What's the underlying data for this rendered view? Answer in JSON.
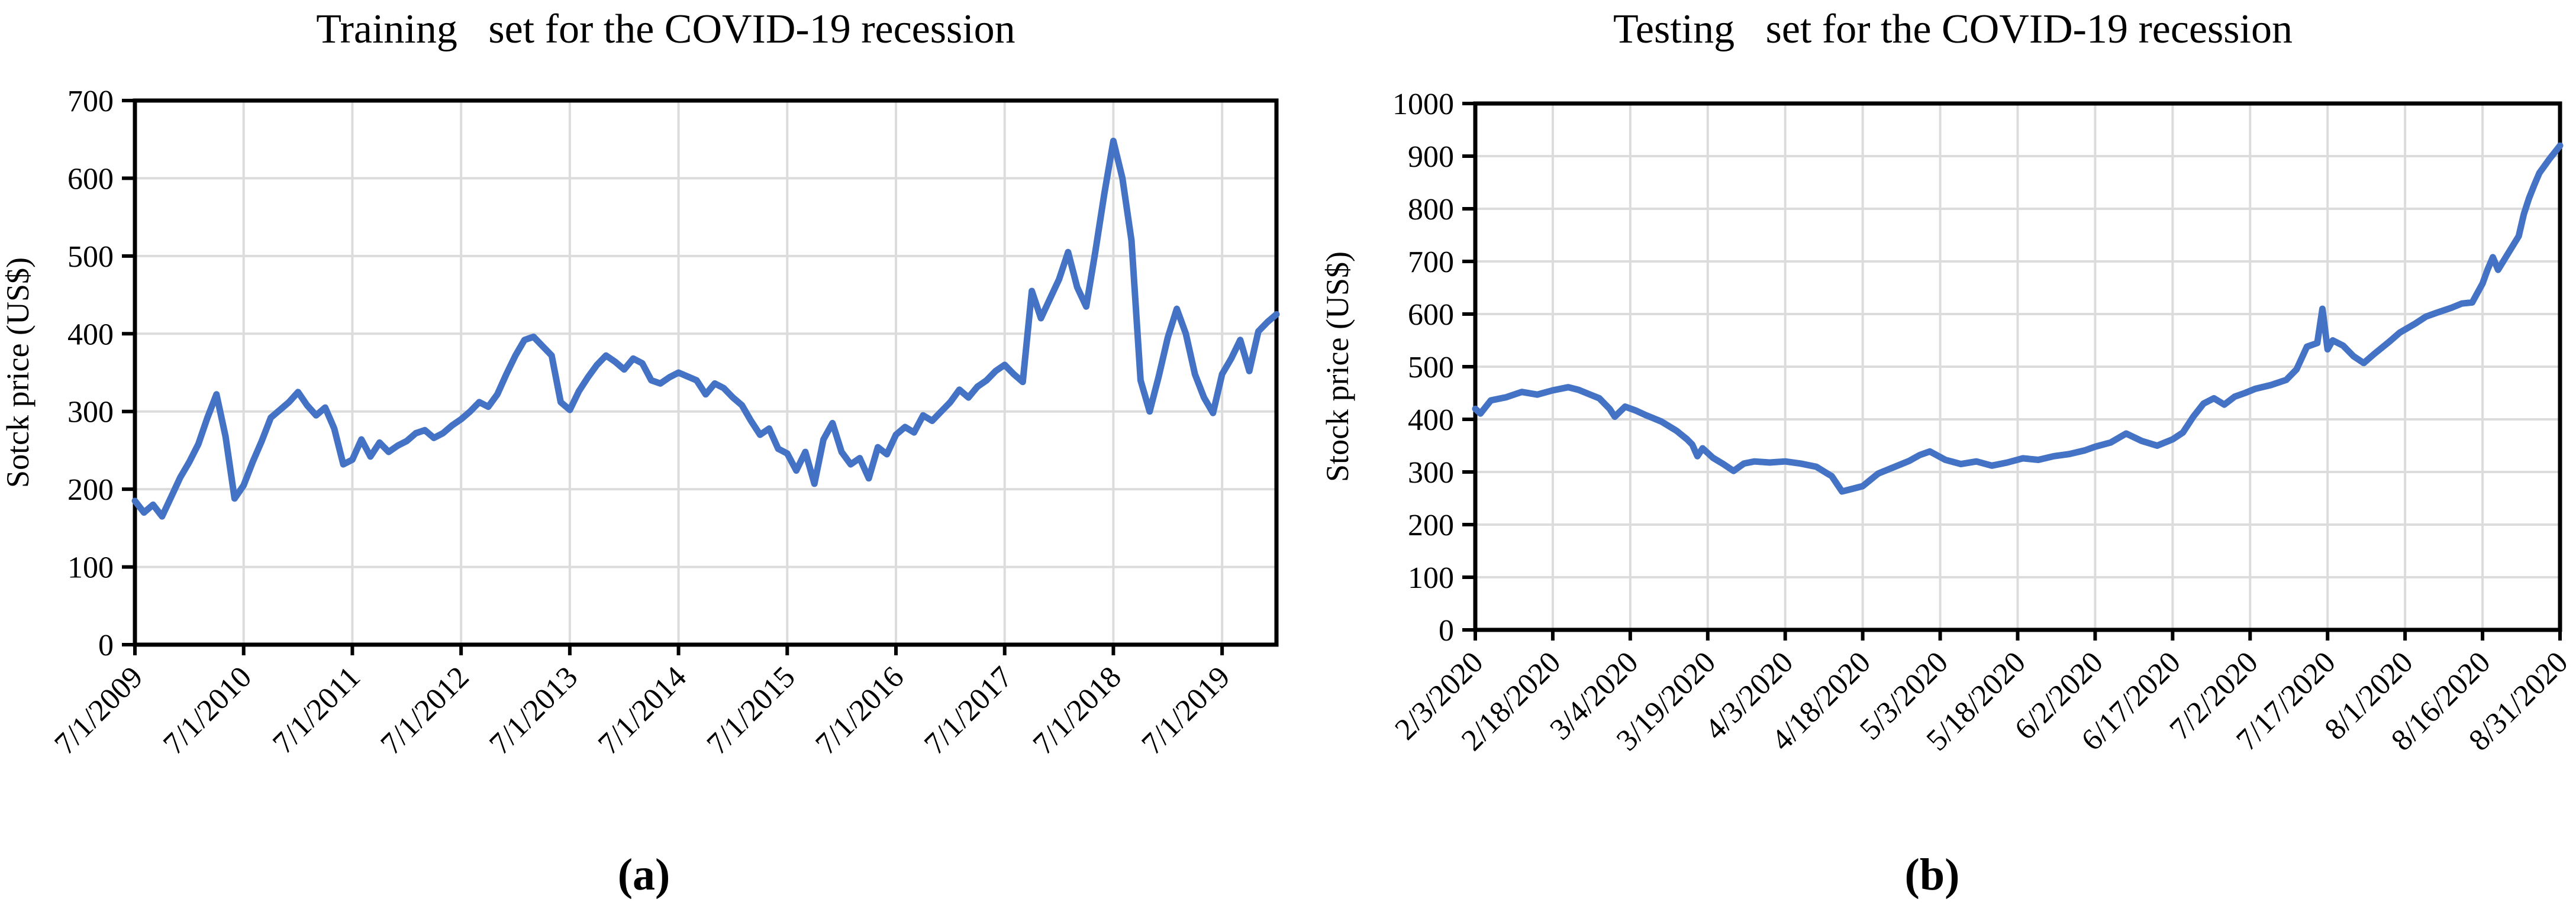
{
  "figure": {
    "caption_a": "(a)",
    "caption_b": "(b)"
  },
  "colors": {
    "line": "#4472C4",
    "grid": "#DCDCDC",
    "axis": "#000000",
    "background": "#FFFFFF"
  },
  "chart_data": [
    {
      "id": "training",
      "type": "line",
      "title": "Training  set for the COVID-19 recession",
      "xlabel": "",
      "ylabel": "Sotck price (US$)",
      "ylim": [
        0,
        700
      ],
      "ytick_step": 100,
      "y_tick_labels": [
        "0",
        "100",
        "200",
        "300",
        "400",
        "500",
        "600",
        "700"
      ],
      "xlim": [
        0,
        126
      ],
      "x_unit": "months since 7/1/2009",
      "x_tick_positions": [
        0,
        12,
        24,
        36,
        48,
        60,
        72,
        84,
        96,
        108,
        120
      ],
      "x_tick_labels": [
        "7/1/2009",
        "7/1/2010",
        "7/1/2011",
        "7/1/2012",
        "7/1/2013",
        "7/1/2014",
        "7/1/2015",
        "7/1/2016",
        "7/1/2017",
        "7/1/2018",
        "7/1/2019"
      ],
      "grid": true,
      "legend": "none",
      "series": [
        {
          "name": "stock-price",
          "color": "#4472C4",
          "points": [
            [
              0,
              185
            ],
            [
              1,
              170
            ],
            [
              2,
              180
            ],
            [
              3,
              165
            ],
            [
              4,
              190
            ],
            [
              5,
              215
            ],
            [
              6,
              235
            ],
            [
              7,
              258
            ],
            [
              8,
              292
            ],
            [
              9,
              322
            ],
            [
              10,
              268
            ],
            [
              11,
              188
            ],
            [
              12,
              205
            ],
            [
              13,
              235
            ],
            [
              14,
              262
            ],
            [
              15,
              292
            ],
            [
              16,
              302
            ],
            [
              17,
              312
            ],
            [
              18,
              325
            ],
            [
              19,
              308
            ],
            [
              20,
              295
            ],
            [
              21,
              305
            ],
            [
              22,
              278
            ],
            [
              23,
              232
            ],
            [
              24,
              238
            ],
            [
              25,
              264
            ],
            [
              26,
              242
            ],
            [
              27,
              260
            ],
            [
              28,
              248
            ],
            [
              29,
              256
            ],
            [
              30,
              262
            ],
            [
              31,
              272
            ],
            [
              32,
              276
            ],
            [
              33,
              266
            ],
            [
              34,
              272
            ],
            [
              35,
              282
            ],
            [
              36,
              290
            ],
            [
              37,
              300
            ],
            [
              38,
              312
            ],
            [
              39,
              306
            ],
            [
              40,
              322
            ],
            [
              41,
              348
            ],
            [
              42,
              372
            ],
            [
              43,
              392
            ],
            [
              44,
              396
            ],
            [
              45,
              384
            ],
            [
              46,
              372
            ],
            [
              47,
              312
            ],
            [
              48,
              302
            ],
            [
              49,
              326
            ],
            [
              50,
              344
            ],
            [
              51,
              360
            ],
            [
              52,
              372
            ],
            [
              53,
              364
            ],
            [
              54,
              354
            ],
            [
              55,
              368
            ],
            [
              56,
              362
            ],
            [
              57,
              340
            ],
            [
              58,
              336
            ],
            [
              59,
              344
            ],
            [
              60,
              350
            ],
            [
              61,
              345
            ],
            [
              62,
              340
            ],
            [
              63,
              322
            ],
            [
              64,
              336
            ],
            [
              65,
              330
            ],
            [
              66,
              318
            ],
            [
              67,
              308
            ],
            [
              68,
              288
            ],
            [
              69,
              270
            ],
            [
              70,
              278
            ],
            [
              71,
              252
            ],
            [
              72,
              246
            ],
            [
              73,
              224
            ],
            [
              74,
              248
            ],
            [
              75,
              207
            ],
            [
              76,
              264
            ],
            [
              77,
              285
            ],
            [
              78,
              248
            ],
            [
              79,
              232
            ],
            [
              80,
              240
            ],
            [
              81,
              214
            ],
            [
              82,
              254
            ],
            [
              83,
              245
            ],
            [
              84,
              270
            ],
            [
              85,
              280
            ],
            [
              86,
              273
            ],
            [
              87,
              295
            ],
            [
              88,
              288
            ],
            [
              89,
              300
            ],
            [
              90,
              312
            ],
            [
              91,
              328
            ],
            [
              92,
              318
            ],
            [
              93,
              332
            ],
            [
              94,
              340
            ],
            [
              95,
              352
            ],
            [
              96,
              360
            ],
            [
              97,
              348
            ],
            [
              98,
              338
            ],
            [
              99,
              455
            ],
            [
              100,
              420
            ],
            [
              101,
              445
            ],
            [
              102,
              470
            ],
            [
              103,
              505
            ],
            [
              104,
              460
            ],
            [
              105,
              435
            ],
            [
              106,
              505
            ],
            [
              107,
              580
            ],
            [
              108,
              648
            ],
            [
              109,
              600
            ],
            [
              110,
              520
            ],
            [
              111,
              340
            ],
            [
              112,
              300
            ],
            [
              113,
              345
            ],
            [
              114,
              395
            ],
            [
              115,
              432
            ],
            [
              116,
              400
            ],
            [
              117,
              348
            ],
            [
              118,
              318
            ],
            [
              119,
              298
            ],
            [
              120,
              348
            ],
            [
              121,
              368
            ],
            [
              122,
              392
            ],
            [
              123,
              352
            ],
            [
              124,
              403
            ],
            [
              125,
              415
            ],
            [
              126,
              425
            ]
          ]
        }
      ]
    },
    {
      "id": "testing",
      "type": "line",
      "title": "Testing  set for the COVID-19 recession",
      "xlabel": "",
      "ylabel": "Stock price (US$)",
      "ylim": [
        0,
        1000
      ],
      "ytick_step": 100,
      "y_tick_labels": [
        "0",
        "100",
        "200",
        "300",
        "400",
        "500",
        "600",
        "700",
        "800",
        "900",
        "1000"
      ],
      "xlim": [
        0,
        210
      ],
      "x_unit": "days since 2/3/2020",
      "x_tick_positions": [
        0,
        15,
        30,
        45,
        60,
        75,
        90,
        105,
        120,
        135,
        150,
        165,
        180,
        195,
        210
      ],
      "x_tick_labels": [
        "2/3/2020",
        "2/18/2020",
        "3/4/2020",
        "3/19/2020",
        "4/3/2020",
        "4/18/2020",
        "5/3/2020",
        "5/18/2020",
        "6/2/2020",
        "6/17/2020",
        "7/2/2020",
        "7/17/2020",
        "8/1/2020",
        "8/16/2020",
        "8/31/2020"
      ],
      "grid": true,
      "legend": "none",
      "series": [
        {
          "name": "stock-price",
          "color": "#4472C4",
          "points": [
            [
              0,
              420
            ],
            [
              1,
              411
            ],
            [
              3,
              436
            ],
            [
              6,
              442
            ],
            [
              9,
              452
            ],
            [
              12,
              447
            ],
            [
              15,
              455
            ],
            [
              18,
              461
            ],
            [
              20,
              456
            ],
            [
              22,
              448
            ],
            [
              24,
              440
            ],
            [
              26,
              420
            ],
            [
              27,
              405
            ],
            [
              29,
              424
            ],
            [
              31,
              417
            ],
            [
              33,
              408
            ],
            [
              36,
              396
            ],
            [
              39,
              378
            ],
            [
              41,
              362
            ],
            [
              42,
              352
            ],
            [
              43,
              330
            ],
            [
              44,
              345
            ],
            [
              46,
              327
            ],
            [
              48,
              315
            ],
            [
              50,
              302
            ],
            [
              52,
              316
            ],
            [
              54,
              320
            ],
            [
              57,
              318
            ],
            [
              60,
              320
            ],
            [
              63,
              316
            ],
            [
              66,
              310
            ],
            [
              68,
              298
            ],
            [
              69,
              292
            ],
            [
              71,
              263
            ],
            [
              73,
              268
            ],
            [
              75,
              273
            ],
            [
              78,
              297
            ],
            [
              81,
              309
            ],
            [
              84,
              321
            ],
            [
              86,
              332
            ],
            [
              88,
              339
            ],
            [
              91,
              323
            ],
            [
              94,
              315
            ],
            [
              97,
              320
            ],
            [
              100,
              312
            ],
            [
              103,
              318
            ],
            [
              106,
              326
            ],
            [
              109,
              323
            ],
            [
              112,
              330
            ],
            [
              115,
              334
            ],
            [
              118,
              341
            ],
            [
              120,
              348
            ],
            [
              123,
              356
            ],
            [
              126,
              373
            ],
            [
              129,
              359
            ],
            [
              132,
              350
            ],
            [
              135,
              362
            ],
            [
              137,
              375
            ],
            [
              139,
              405
            ],
            [
              141,
              430
            ],
            [
              143,
              440
            ],
            [
              145,
              428
            ],
            [
              147,
              443
            ],
            [
              149,
              450
            ],
            [
              151,
              458
            ],
            [
              154,
              465
            ],
            [
              157,
              475
            ],
            [
              159,
              495
            ],
            [
              161,
              538
            ],
            [
              163,
              545
            ],
            [
              164,
              610
            ],
            [
              165,
              533
            ],
            [
              166,
              550
            ],
            [
              168,
              540
            ],
            [
              170,
              520
            ],
            [
              172,
              507
            ],
            [
              174,
              524
            ],
            [
              177,
              548
            ],
            [
              179,
              565
            ],
            [
              182,
              582
            ],
            [
              184,
              595
            ],
            [
              186,
              602
            ],
            [
              189,
              612
            ],
            [
              191,
              620
            ],
            [
              193,
              622
            ],
            [
              195,
              658
            ],
            [
              196,
              685
            ],
            [
              197,
              708
            ],
            [
              198,
              684
            ],
            [
              199,
              700
            ],
            [
              202,
              748
            ],
            [
              203,
              790
            ],
            [
              204,
              820
            ],
            [
              205,
              845
            ],
            [
              206,
              868
            ],
            [
              208,
              895
            ],
            [
              210,
              920
            ]
          ]
        }
      ]
    }
  ]
}
